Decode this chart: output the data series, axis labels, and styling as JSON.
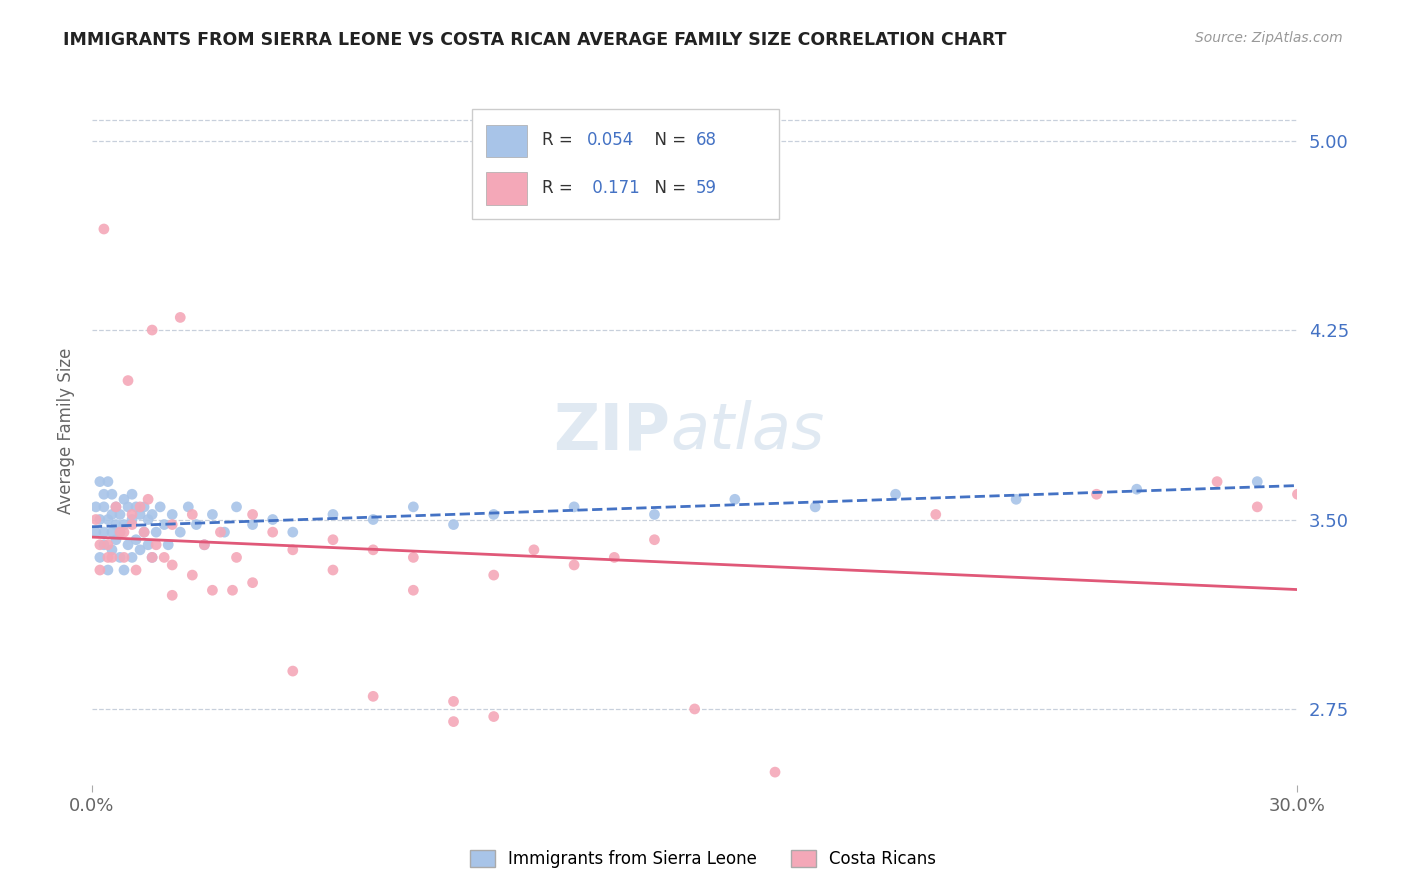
{
  "title": "IMMIGRANTS FROM SIERRA LEONE VS COSTA RICAN AVERAGE FAMILY SIZE CORRELATION CHART",
  "source": "Source: ZipAtlas.com",
  "ylabel": "Average Family Size",
  "xlim": [
    0.0,
    0.3
  ],
  "ylim": [
    2.45,
    5.25
  ],
  "xticklabels": [
    "0.0%",
    "30.0%"
  ],
  "yticks_right": [
    5.0,
    4.25,
    3.5,
    2.75
  ],
  "right_tick_color": "#4472c4",
  "grid_color": "#c8d0dc",
  "series1_color": "#a8c4e8",
  "series2_color": "#f4a8b8",
  "trendline1_color": "#4472c4",
  "trendline2_color": "#e05878",
  "watermark_color": "#c8d8e8",
  "series1_x": [
    0.001,
    0.001,
    0.002,
    0.002,
    0.002,
    0.003,
    0.003,
    0.003,
    0.003,
    0.004,
    0.004,
    0.004,
    0.005,
    0.005,
    0.005,
    0.005,
    0.006,
    0.006,
    0.006,
    0.007,
    0.007,
    0.007,
    0.008,
    0.008,
    0.008,
    0.009,
    0.009,
    0.01,
    0.01,
    0.01,
    0.011,
    0.011,
    0.012,
    0.012,
    0.013,
    0.013,
    0.014,
    0.014,
    0.015,
    0.015,
    0.016,
    0.017,
    0.018,
    0.019,
    0.02,
    0.022,
    0.024,
    0.026,
    0.028,
    0.03,
    0.033,
    0.036,
    0.04,
    0.045,
    0.05,
    0.06,
    0.07,
    0.08,
    0.09,
    0.1,
    0.12,
    0.14,
    0.16,
    0.18,
    0.2,
    0.23,
    0.26,
    0.29
  ],
  "series1_y": [
    3.45,
    3.55,
    3.35,
    3.5,
    3.65,
    3.4,
    3.6,
    3.45,
    3.55,
    3.3,
    3.5,
    3.65,
    3.38,
    3.52,
    3.45,
    3.6,
    3.42,
    3.55,
    3.48,
    3.35,
    3.52,
    3.45,
    3.3,
    3.48,
    3.58,
    3.4,
    3.55,
    3.35,
    3.5,
    3.6,
    3.42,
    3.55,
    3.38,
    3.52,
    3.45,
    3.55,
    3.4,
    3.5,
    3.35,
    3.52,
    3.45,
    3.55,
    3.48,
    3.4,
    3.52,
    3.45,
    3.55,
    3.48,
    3.4,
    3.52,
    3.45,
    3.55,
    3.48,
    3.5,
    3.45,
    3.52,
    3.5,
    3.55,
    3.48,
    3.52,
    3.55,
    3.52,
    3.58,
    3.55,
    3.6,
    3.58,
    3.62,
    3.65
  ],
  "series2_x": [
    0.001,
    0.002,
    0.003,
    0.004,
    0.005,
    0.006,
    0.007,
    0.008,
    0.009,
    0.01,
    0.011,
    0.012,
    0.013,
    0.014,
    0.015,
    0.016,
    0.018,
    0.02,
    0.022,
    0.025,
    0.028,
    0.032,
    0.036,
    0.04,
    0.045,
    0.05,
    0.06,
    0.07,
    0.08,
    0.09,
    0.1,
    0.12,
    0.14,
    0.15,
    0.17,
    0.21,
    0.25,
    0.28,
    0.29,
    0.3,
    0.002,
    0.004,
    0.008,
    0.01,
    0.015,
    0.02,
    0.03,
    0.04,
    0.06,
    0.08,
    0.1,
    0.02,
    0.025,
    0.035,
    0.05,
    0.07,
    0.09,
    0.11,
    0.13
  ],
  "series2_y": [
    3.5,
    3.3,
    4.65,
    3.4,
    3.35,
    3.55,
    3.45,
    3.35,
    4.05,
    3.48,
    3.3,
    3.55,
    3.45,
    3.58,
    4.25,
    3.4,
    3.35,
    3.48,
    4.3,
    3.52,
    3.4,
    3.45,
    3.35,
    3.52,
    3.45,
    3.38,
    3.42,
    3.38,
    3.35,
    2.7,
    2.72,
    3.32,
    3.42,
    2.75,
    2.5,
    3.52,
    3.6,
    3.65,
    3.55,
    3.6,
    3.4,
    3.35,
    3.45,
    3.52,
    3.35,
    3.32,
    3.22,
    3.25,
    3.3,
    3.22,
    3.28,
    3.2,
    3.28,
    3.22,
    2.9,
    2.8,
    2.78,
    3.38,
    3.35
  ]
}
